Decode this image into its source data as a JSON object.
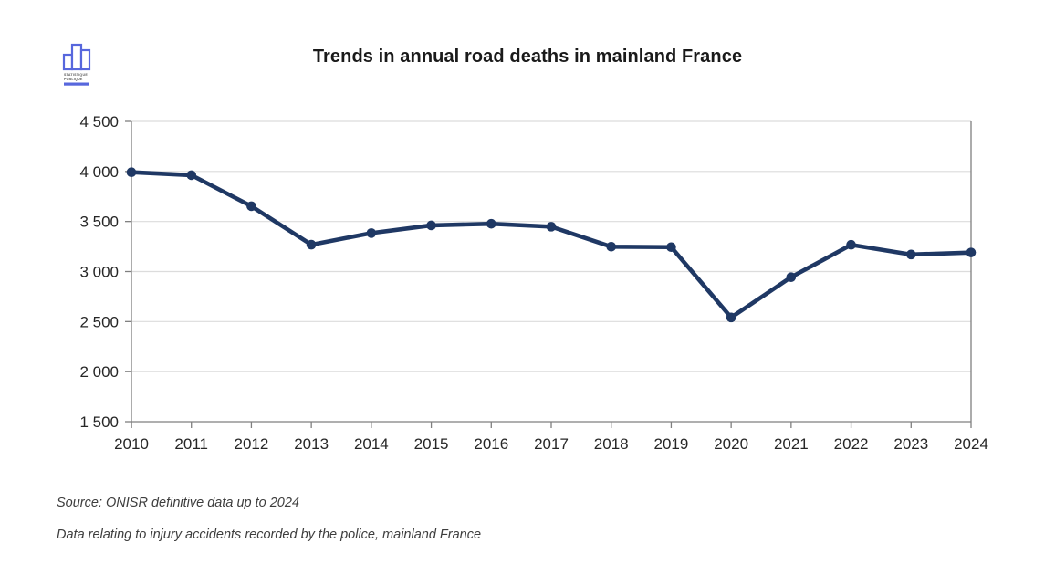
{
  "header": {
    "title": "Trends in annual road deaths in mainland France",
    "logo": {
      "line1": "STATISTIQUE",
      "line2": "PUBLIQUE"
    }
  },
  "chart_data": {
    "type": "line",
    "title": "Trends in annual road deaths in mainland France",
    "categories": [
      2010,
      2011,
      2012,
      2013,
      2014,
      2015,
      2016,
      2017,
      2018,
      2019,
      2020,
      2021,
      2022,
      2023,
      2024
    ],
    "series": [
      {
        "name": "Annual road deaths in mainland France",
        "values": [
          3992,
          3963,
          3653,
          3268,
          3384,
          3461,
          3477,
          3448,
          3248,
          3244,
          2541,
          2944,
          3267,
          3170,
          3190
        ]
      }
    ],
    "xlabel": "",
    "ylabel": "",
    "ylim": [
      1500,
      4500
    ],
    "ytick_step": 500,
    "ytick_labels": [
      "1 500",
      "2 000",
      "2 500",
      "3 000",
      "3 500",
      "4 000",
      "4 500"
    ],
    "grid": true,
    "legend": false,
    "colors": {
      "line": "#1f3864",
      "gridline": "#dcdcdc",
      "axis": "#7f7f7f",
      "tick_text": "#262626"
    }
  },
  "footer": {
    "source_line1": "Source: ONISR definitive data up to 2024",
    "source_line2": "Data relating to injury accidents recorded by the police, mainland France"
  }
}
